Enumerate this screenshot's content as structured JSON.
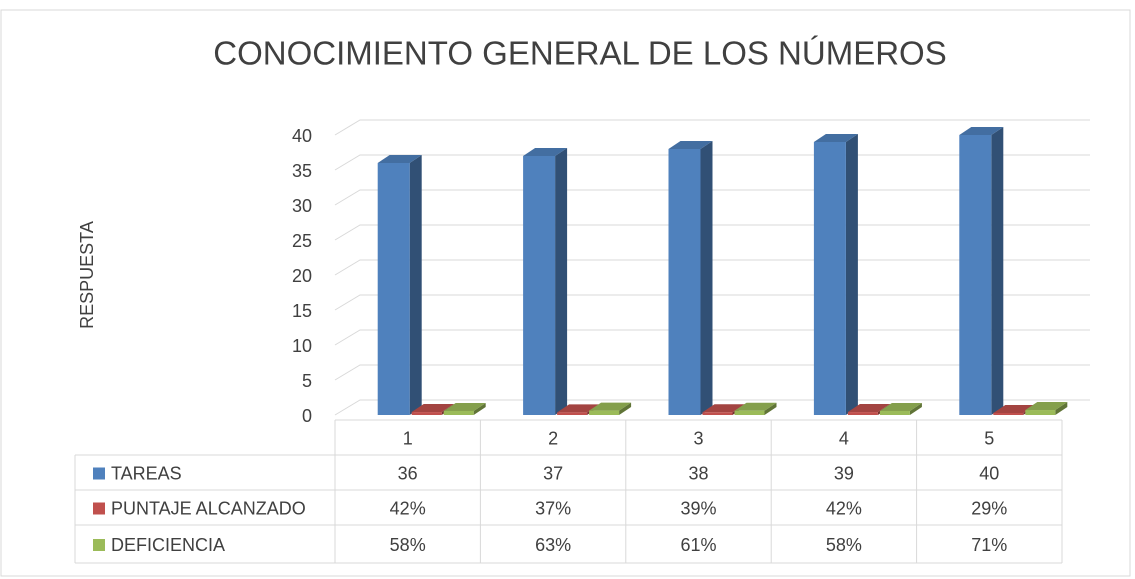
{
  "chart_data": {
    "type": "bar3d",
    "title": "CONOCIMIENTO GENERAL DE LOS NÚMEROS",
    "y_label": "RESPUESTA",
    "categories": [
      "1",
      "2",
      "3",
      "4",
      "5"
    ],
    "series": [
      {
        "name": "TAREAS",
        "color": "#4f81bd",
        "values": [
          36,
          37,
          38,
          39,
          40
        ]
      },
      {
        "name": "PUNTAJE ALCANZADO",
        "color": "#c0504d",
        "values": [
          0.42,
          0.37,
          0.39,
          0.42,
          0.29
        ],
        "value_labels": [
          "42%",
          "37%",
          "39%",
          "42%",
          "29%"
        ]
      },
      {
        "name": "DEFICIENCIA",
        "color": "#9bbb59",
        "values": [
          0.58,
          0.63,
          0.61,
          0.58,
          0.71
        ],
        "value_labels": [
          "58%",
          "63%",
          "61%",
          "58%",
          "71%"
        ]
      }
    ],
    "ylim": [
      0,
      40
    ],
    "yticks": [
      0,
      5,
      10,
      15,
      20,
      25,
      30,
      35,
      40
    ],
    "grid": true,
    "data_table": true
  }
}
